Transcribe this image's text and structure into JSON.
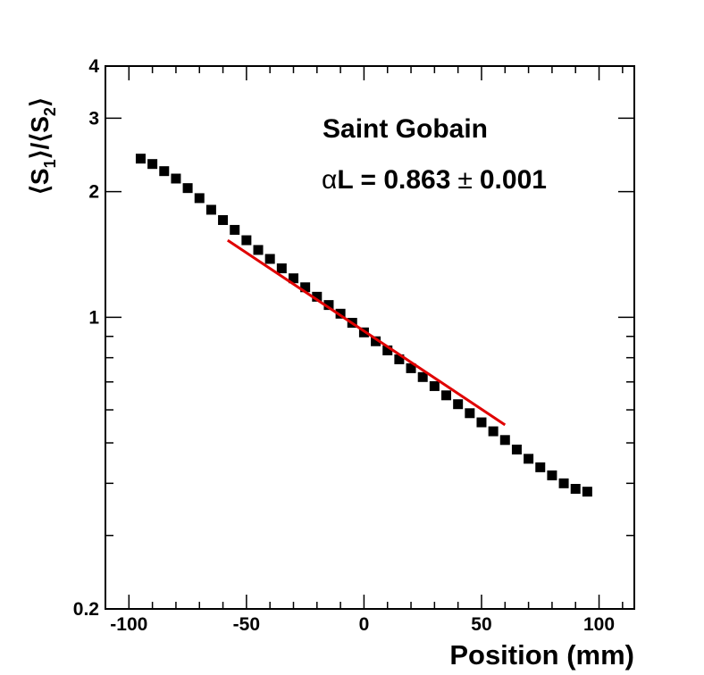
{
  "chart_data": {
    "type": "scatter",
    "title": "",
    "xlabel": "Position (mm)",
    "ylabel": "⟨S1⟩/⟨S2⟩",
    "ylabel_parts": [
      "⟨S",
      "1",
      "⟩/⟨S",
      "2",
      "⟩"
    ],
    "xlim": [
      -110,
      115
    ],
    "ylim": [
      0.2,
      4
    ],
    "yscale": "log",
    "grid": false,
    "x_ticks": [
      -100,
      -50,
      0,
      50,
      100
    ],
    "x_tick_labels": [
      "-100",
      "-50",
      "0",
      "50",
      "100"
    ],
    "y_ticks_labeled": [
      0.2,
      1,
      2,
      3,
      4
    ],
    "y_tick_labels": [
      "0.2",
      "1",
      "2",
      "3",
      "4"
    ],
    "annotations": {
      "line1": "Saint Gobain",
      "line2_symbol": "α",
      "line2_text": "L = 0.863",
      "line2_pm": "±",
      "line2_err": "0.001"
    },
    "series": [
      {
        "marker": "square",
        "color": "#000000",
        "x": [
          -95,
          -90,
          -85,
          -80,
          -75,
          -70,
          -65,
          -60,
          -55,
          -50,
          -45,
          -40,
          -35,
          -30,
          -25,
          -20,
          -15,
          -10,
          -5,
          0,
          5,
          10,
          15,
          20,
          25,
          30,
          35,
          40,
          45,
          50,
          55,
          60,
          65,
          70,
          75,
          80,
          85,
          90,
          95
        ],
        "y": [
          2.4,
          2.33,
          2.24,
          2.15,
          2.04,
          1.93,
          1.81,
          1.71,
          1.62,
          1.53,
          1.45,
          1.38,
          1.31,
          1.24,
          1.18,
          1.12,
          1.07,
          1.02,
          0.97,
          0.92,
          0.876,
          0.833,
          0.793,
          0.755,
          0.719,
          0.684,
          0.65,
          0.619,
          0.589,
          0.56,
          0.533,
          0.508,
          0.482,
          0.458,
          0.437,
          0.418,
          0.4,
          0.388,
          0.382
        ]
      }
    ],
    "fit": {
      "color": "#e00000",
      "x_range": [
        -58,
        60
      ],
      "y_at_x0": 0.927,
      "alpha_L": 0.863
    }
  }
}
